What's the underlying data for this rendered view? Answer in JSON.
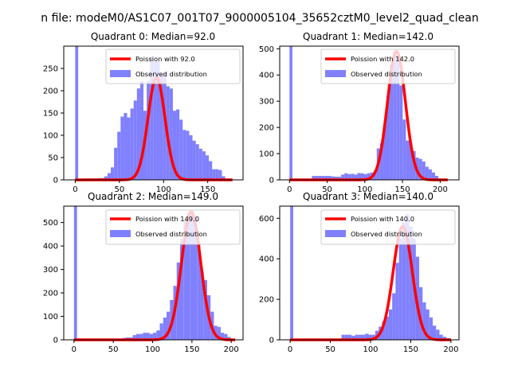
{
  "figure": {
    "suptitle": "n file: modeM0/AS1C07_001T07_9000005104_35652cztM0_level2_quad_clean",
    "colors": {
      "observed": "#8080ff",
      "poisson": "#ff0000",
      "axis": "#000000"
    }
  },
  "chart_data": [
    {
      "type": "bar",
      "title": "Quadrant 0: Median=92.0",
      "median": 92.0,
      "xlim": [
        -13,
        190
      ],
      "ylim": [
        0,
        300
      ],
      "xticks": [
        0,
        50,
        100,
        150
      ],
      "yticks": [
        0,
        50,
        100,
        150,
        200,
        250
      ],
      "legend_location": "upper-right",
      "legend": [
        "Poission with 92.0",
        "Observed distribution"
      ],
      "observed": {
        "name": "Observed distribution",
        "bin_width": 3.7,
        "spike_at_zero": 300,
        "x": [
          12.5,
          16.2,
          19.9,
          23.6,
          27.3,
          31,
          34.7,
          38.4,
          42.1,
          45.8,
          49.5,
          53.2,
          56.9,
          60.6,
          64.3,
          68,
          71.7,
          75.4,
          79.1,
          82.8,
          86.5,
          90.2,
          93.9,
          97.6,
          101.3,
          105,
          108.7,
          112.4,
          116.1,
          119.8,
          123.5,
          127.2,
          130.9,
          134.6,
          138.3,
          142,
          145.7,
          149.4,
          153.1,
          156.8,
          160.5,
          164.2,
          167.9
        ],
        "values": [
          3,
          3,
          3,
          3,
          4,
          4,
          8,
          15,
          28,
          72,
          108,
          142,
          150,
          140,
          160,
          178,
          205,
          222,
          155,
          222,
          275,
          265,
          266,
          232,
          242,
          210,
          205,
          155,
          158,
          135,
          112,
          110,
          100,
          88,
          80,
          70,
          64,
          55,
          42,
          24,
          24,
          22,
          8
        ]
      },
      "poisson": {
        "name": "Poission with 92.0",
        "mu": 92.0,
        "peak": 230,
        "x_range": [
          0,
          178
        ]
      }
    },
    {
      "type": "bar",
      "title": "Quadrant 1: Median=142.0",
      "median": 142.0,
      "xlim": [
        -13,
        225
      ],
      "ylim": [
        0,
        510
      ],
      "xticks": [
        0,
        50,
        100,
        150,
        200
      ],
      "yticks": [
        0,
        100,
        200,
        300,
        400,
        500
      ],
      "legend_location": "upper-right",
      "legend": [
        "Poission with 142.0",
        "Observed distribution"
      ],
      "observed": {
        "name": "Observed distribution",
        "bin_width": 4.3,
        "spike_at_zero": 510,
        "x": [
          32,
          36.3,
          40.6,
          44.9,
          49.2,
          53.5,
          57.8,
          62.1,
          66.4,
          70.7,
          75,
          79.3,
          83.6,
          87.9,
          92.2,
          96.5,
          100.8,
          105.1,
          109.4,
          113.7,
          118,
          122.3,
          126.6,
          130.9,
          135.2,
          139.5,
          143.8,
          148.1,
          152.4,
          156.7,
          161,
          165.3,
          169.6,
          173.9,
          178.2,
          182.5,
          186.8,
          191.1,
          195.4,
          199.7
        ],
        "values": [
          15,
          15,
          15,
          15,
          15,
          15,
          13,
          12,
          12,
          20,
          25,
          22,
          23,
          20,
          26,
          25,
          22,
          25,
          28,
          35,
          120,
          140,
          210,
          320,
          440,
          490,
          475,
          360,
          230,
          150,
          140,
          110,
          85,
          80,
          70,
          50,
          40,
          28,
          15,
          6
        ]
      },
      "poisson": {
        "name": "Poission with 142.0",
        "mu": 142.0,
        "peak": 490,
        "x_range": [
          0,
          210
        ]
      }
    },
    {
      "type": "bar",
      "title": "Quadrant 2: Median=149.0",
      "median": 149.0,
      "xlim": [
        -13,
        215
      ],
      "ylim": [
        0,
        570
      ],
      "xticks": [
        0,
        50,
        100,
        150,
        200
      ],
      "yticks": [
        0,
        100,
        200,
        300,
        400,
        500
      ],
      "legend_location": "upper-right",
      "legend": [
        "Poission with 149.0",
        "Observed distribution"
      ],
      "observed": {
        "name": "Observed distribution",
        "bin_width": 4.3,
        "spike_at_zero": 570,
        "x": [
          64,
          68.3,
          72.6,
          76.9,
          81.2,
          85.5,
          89.8,
          94.1,
          98.4,
          102.7,
          107,
          111.3,
          115.6,
          119.9,
          124.2,
          128.5,
          132.8,
          137.1,
          141.4,
          145.7,
          150,
          154.3,
          158.6,
          162.9,
          167.2,
          171.5,
          175.8,
          180.1,
          184.4,
          188.7,
          193,
          197.3
        ],
        "values": [
          8,
          10,
          10,
          20,
          25,
          25,
          30,
          30,
          25,
          30,
          40,
          70,
          95,
          120,
          170,
          230,
          330,
          430,
          510,
          540,
          550,
          530,
          410,
          290,
          255,
          190,
          120,
          60,
          55,
          30,
          25,
          12
        ]
      },
      "poisson": {
        "name": "Poission with 149.0",
        "mu": 149.0,
        "peak": 545,
        "x_range": [
          0,
          205
        ]
      }
    },
    {
      "type": "bar",
      "title": "Quadrant 3: Median=140.0",
      "median": 140.0,
      "xlim": [
        -13,
        210
      ],
      "ylim": [
        0,
        660
      ],
      "xticks": [
        0,
        50,
        100,
        150,
        200
      ],
      "yticks": [
        0,
        200,
        400,
        600
      ],
      "legend_location": "upper-right",
      "legend": [
        "Poission with 140.0",
        "Observed distribution"
      ],
      "observed": {
        "name": "Observed distribution",
        "bin_width": 4.2,
        "spike_at_zero": 660,
        "x": [
          66,
          70.2,
          74.4,
          78.6,
          82.8,
          87,
          91.2,
          95.4,
          99.6,
          103.8,
          108,
          112.2,
          116.4,
          120.6,
          124.8,
          129,
          133.2,
          137.4,
          141.6,
          145.8,
          150,
          154.2,
          158.4,
          162.6,
          166.8,
          171,
          175.2,
          179.4,
          183.6,
          187.8,
          192,
          196.2
        ],
        "values": [
          25,
          25,
          25,
          20,
          25,
          25,
          25,
          30,
          25,
          25,
          45,
          65,
          90,
          115,
          150,
          230,
          380,
          500,
          580,
          620,
          560,
          500,
          410,
          260,
          185,
          150,
          110,
          70,
          50,
          25,
          15,
          8
        ]
      },
      "poisson": {
        "name": "Poission with 140.0",
        "mu": 140.0,
        "peak": 560,
        "x_range": [
          0,
          200
        ]
      }
    }
  ]
}
